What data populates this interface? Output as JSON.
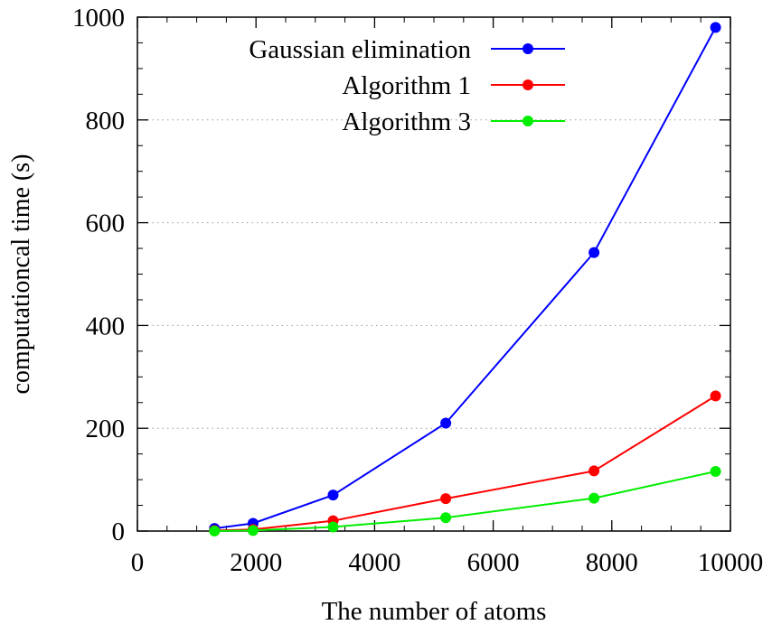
{
  "chart_data": {
    "type": "line",
    "title": "",
    "xlabel": "The number of atoms",
    "ylabel": "computationcal time (s)",
    "xlim": [
      0,
      10000
    ],
    "ylim": [
      0,
      1000
    ],
    "x_ticks": [
      0,
      2000,
      4000,
      6000,
      8000,
      10000
    ],
    "y_ticks": [
      0,
      200,
      400,
      600,
      800,
      1000
    ],
    "x_tick_labels": [
      "0",
      "2000",
      "4000",
      "6000",
      "8000",
      "10000"
    ],
    "y_tick_labels": [
      "0",
      "200",
      "400",
      "600",
      "800",
      "1000"
    ],
    "grid": "horizontal-dotted",
    "legend_position": "top-right",
    "series": [
      {
        "name": "Gaussian elimination",
        "color": "#0000ff",
        "x": [
          1300,
          1950,
          3300,
          5200,
          7700,
          9750
        ],
        "y": [
          5,
          15,
          70,
          210,
          542,
          980
        ]
      },
      {
        "name": "Algorithm 1",
        "color": "#ff0000",
        "x": [
          1300,
          1950,
          3300,
          5200,
          7700,
          9750
        ],
        "y": [
          1,
          3,
          20,
          63,
          117,
          263
        ]
      },
      {
        "name": "Algorithm 3",
        "color": "#00ee00",
        "x": [
          1300,
          1950,
          3300,
          5200,
          7700,
          9750
        ],
        "y": [
          0,
          1,
          8,
          26,
          64,
          116
        ]
      }
    ]
  }
}
